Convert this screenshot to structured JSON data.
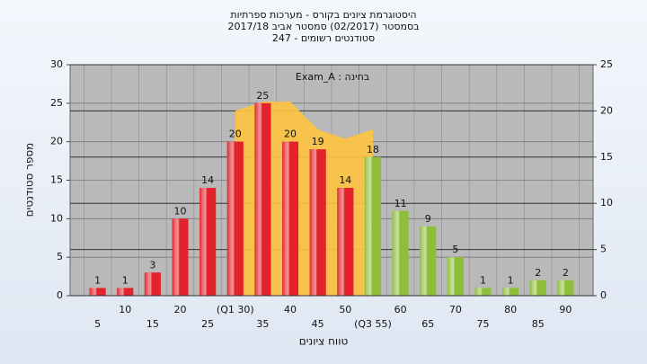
{
  "chart_data": {
    "type": "bar",
    "title": "היסטוגרמת ציונים בקורס - מערכות ספרתיות",
    "subtitle": [
      "בסמסטר  (02/2017)  סמסטר אביב 2017/18",
      "סטודנטים רשומים - 247"
    ],
    "annotation": "בחינה : Exam_A",
    "y_label": "מספר סטודנטים",
    "x_label": "טווח ציונים",
    "categories": [
      "5",
      "10",
      "15",
      "20",
      "25",
      "(Q1 30)",
      "35",
      "40",
      "45",
      "50",
      "(Q3 55)",
      "60",
      "65",
      "70",
      "75",
      "80",
      "85",
      "90"
    ],
    "values": [
      1,
      1,
      3,
      10,
      14,
      20,
      25,
      20,
      19,
      14,
      18,
      11,
      9,
      5,
      1,
      1,
      2,
      2
    ],
    "colors": [
      "#e3232b",
      "#e3232b",
      "#e3232b",
      "#e3232b",
      "#e3232b",
      "#e3232b",
      "#e3232b",
      "#e3232b",
      "#e3232b",
      "#e3232b",
      "#8fbf3a",
      "#8fbf3a",
      "#8fbf3a",
      "#8fbf3a",
      "#8fbf3a",
      "#8fbf3a",
      "#8fbf3a",
      "#8fbf3a"
    ],
    "area": {
      "axis": "y2",
      "color": "#ffc440",
      "values": [
        null,
        null,
        null,
        null,
        null,
        20,
        21,
        21,
        18,
        17,
        18,
        null,
        null,
        null,
        null,
        null,
        null,
        null
      ]
    },
    "ylim": [
      0,
      30
    ],
    "yticks": [
      0,
      5,
      10,
      15,
      20,
      25,
      30
    ],
    "y2lim": [
      0,
      25
    ],
    "y2ticks": [
      0,
      5,
      10,
      15,
      20,
      25
    ],
    "grid": true
  }
}
